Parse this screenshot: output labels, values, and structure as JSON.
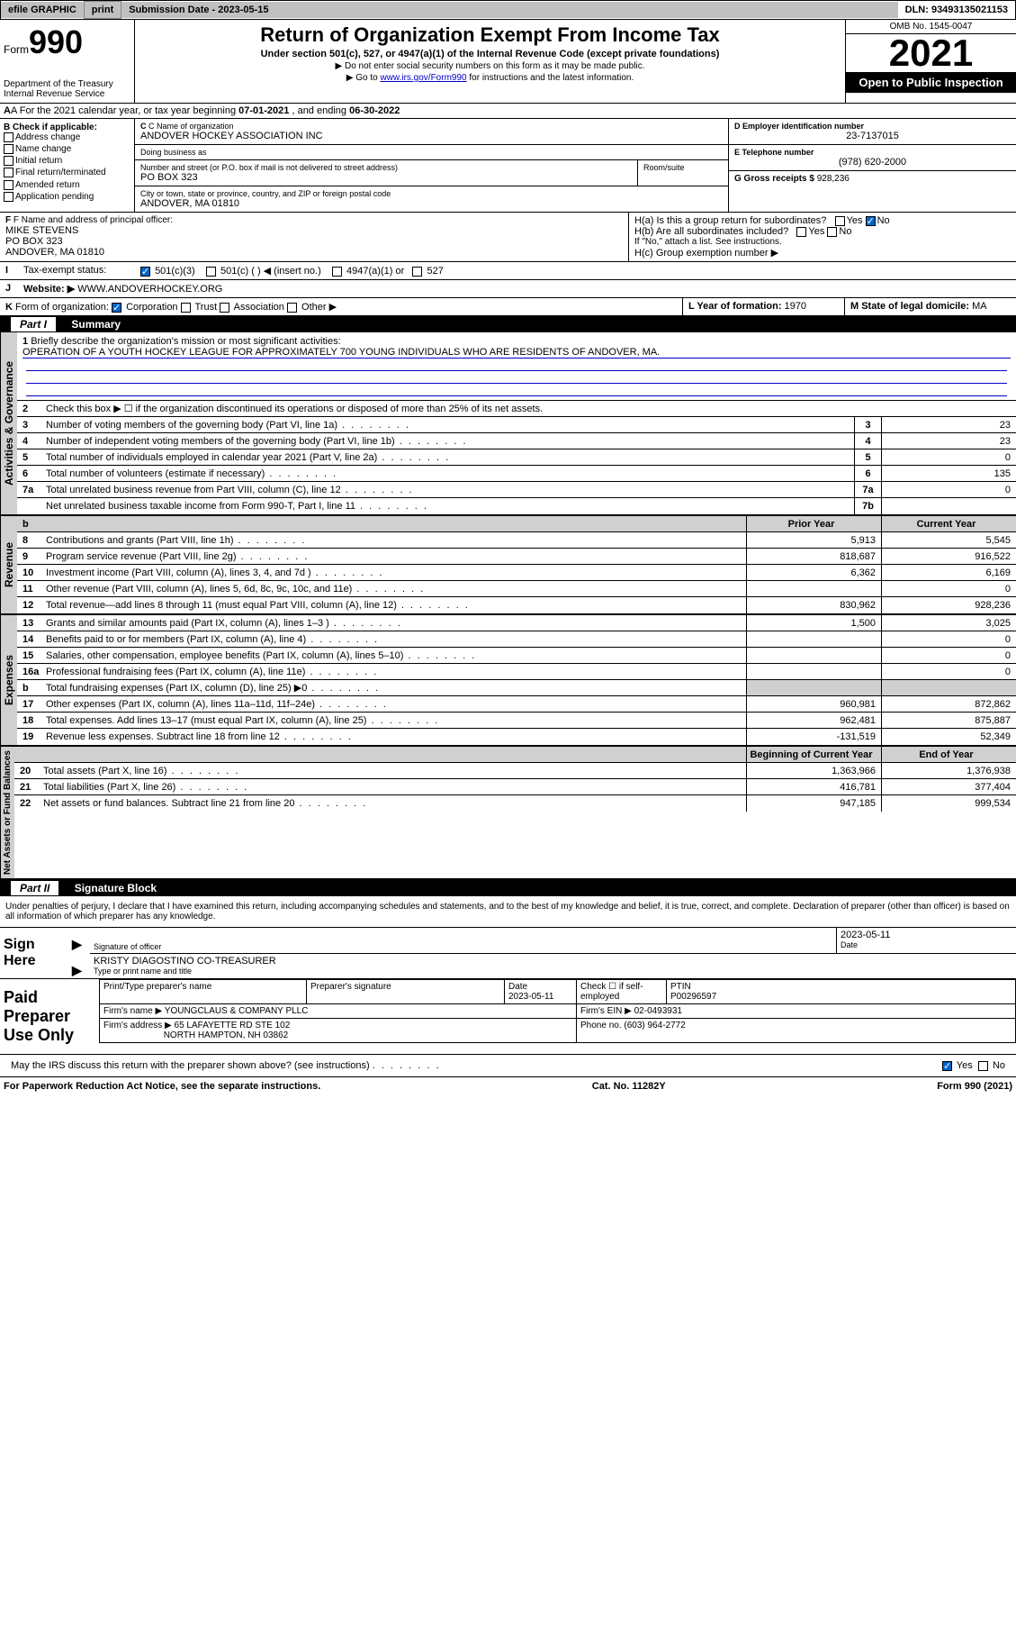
{
  "topbar": {
    "efile": "efile GRAPHIC",
    "print": "print",
    "sub_date_label": "Submission Date - 2023-05-15",
    "dln": "DLN: 93493135021153"
  },
  "header": {
    "form_prefix": "Form",
    "form_number": "990",
    "dept": "Department of the Treasury",
    "irs": "Internal Revenue Service",
    "title": "Return of Organization Exempt From Income Tax",
    "subtitle": "Under section 501(c), 527, or 4947(a)(1) of the Internal Revenue Code (except private foundations)",
    "note1": "▶ Do not enter social security numbers on this form as it may be made public.",
    "note2_pre": "▶ Go to ",
    "note2_link": "www.irs.gov/Form990",
    "note2_post": " for instructions and the latest information.",
    "omb": "OMB No. 1545-0047",
    "year": "2021",
    "open": "Open to Public Inspection"
  },
  "row_a": {
    "text_pre": "A For the 2021 calendar year, or tax year beginning ",
    "begin": "07-01-2021",
    "text_mid": " , and ending ",
    "end": "06-30-2022"
  },
  "col_b": {
    "label": "B Check if applicable:",
    "opts": [
      "Address change",
      "Name change",
      "Initial return",
      "Final return/terminated",
      "Amended return",
      "Application pending"
    ]
  },
  "block_c": {
    "label": "C Name of organization",
    "name": "ANDOVER HOCKEY ASSOCIATION INC",
    "dba_label": "Doing business as",
    "dba": "",
    "street_label": "Number and street (or P.O. box if mail is not delivered to street address)",
    "street": "PO BOX 323",
    "room_label": "Room/suite",
    "room": "",
    "city_label": "City or town, state or province, country, and ZIP or foreign postal code",
    "city": "ANDOVER, MA  01810"
  },
  "block_d": {
    "label": "D Employer identification number",
    "value": "23-7137015"
  },
  "block_e": {
    "label": "E Telephone number",
    "value": "(978) 620-2000"
  },
  "block_g": {
    "label": "G Gross receipts $",
    "value": "928,236"
  },
  "block_f": {
    "label": "F Name and address of principal officer:",
    "name": "MIKE STEVENS",
    "street": "PO BOX 323",
    "city": "ANDOVER, MA  01810"
  },
  "block_h": {
    "a": "H(a)  Is this a group return for subordinates?",
    "b": "H(b)  Are all subordinates included?",
    "b_note": "If \"No,\" attach a list. See instructions.",
    "c": "H(c)  Group exemption number ▶",
    "yes": "Yes",
    "no": "No"
  },
  "row_i": {
    "label": "I",
    "text": "Tax-exempt status:",
    "opts": [
      "501(c)(3)",
      "501(c) (  ) ◀ (insert no.)",
      "4947(a)(1) or",
      "527"
    ]
  },
  "row_j": {
    "label": "J",
    "text": "Website: ▶",
    "value": "WWW.ANDOVERHOCKEY.ORG"
  },
  "row_k": {
    "label": "K",
    "text": "Form of organization:",
    "opts": [
      "Corporation",
      "Trust",
      "Association",
      "Other ▶"
    ]
  },
  "row_l": {
    "label": "L Year of formation:",
    "value": "1970"
  },
  "row_m": {
    "label": "M State of legal domicile:",
    "value": "MA"
  },
  "part1": {
    "label": "Part I",
    "title": "Summary"
  },
  "summary": {
    "q1_label": "1",
    "q1_text": "Briefly describe the organization's mission or most significant activities:",
    "q1_value": "OPERATION OF A YOUTH HOCKEY LEAGUE FOR APPROXIMATELY 700 YOUNG INDIVIDUALS WHO ARE RESIDENTS OF ANDOVER, MA.",
    "q2_label": "2",
    "q2_text": "Check this box ▶ ☐ if the organization discontinued its operations or disposed of more than 25% of its net assets.",
    "lines_gov": [
      {
        "n": "3",
        "t": "Number of voting members of the governing body (Part VI, line 1a)",
        "box": "3",
        "v": "23"
      },
      {
        "n": "4",
        "t": "Number of independent voting members of the governing body (Part VI, line 1b)",
        "box": "4",
        "v": "23"
      },
      {
        "n": "5",
        "t": "Total number of individuals employed in calendar year 2021 (Part V, line 2a)",
        "box": "5",
        "v": "0"
      },
      {
        "n": "6",
        "t": "Total number of volunteers (estimate if necessary)",
        "box": "6",
        "v": "135"
      },
      {
        "n": "7a",
        "t": "Total unrelated business revenue from Part VIII, column (C), line 12",
        "box": "7a",
        "v": "0"
      },
      {
        "n": "",
        "t": "Net unrelated business taxable income from Form 990-T, Part I, line 11",
        "box": "7b",
        "v": ""
      }
    ],
    "col_headers": {
      "b": "b",
      "prior": "Prior Year",
      "current": "Current Year"
    },
    "lines_rev": [
      {
        "n": "8",
        "t": "Contributions and grants (Part VIII, line 1h)",
        "p": "5,913",
        "c": "5,545"
      },
      {
        "n": "9",
        "t": "Program service revenue (Part VIII, line 2g)",
        "p": "818,687",
        "c": "916,522"
      },
      {
        "n": "10",
        "t": "Investment income (Part VIII, column (A), lines 3, 4, and 7d )",
        "p": "6,362",
        "c": "6,169"
      },
      {
        "n": "11",
        "t": "Other revenue (Part VIII, column (A), lines 5, 6d, 8c, 9c, 10c, and 11e)",
        "p": "",
        "c": "0"
      },
      {
        "n": "12",
        "t": "Total revenue—add lines 8 through 11 (must equal Part VIII, column (A), line 12)",
        "p": "830,962",
        "c": "928,236"
      }
    ],
    "lines_exp": [
      {
        "n": "13",
        "t": "Grants and similar amounts paid (Part IX, column (A), lines 1–3 )",
        "p": "1,500",
        "c": "3,025"
      },
      {
        "n": "14",
        "t": "Benefits paid to or for members (Part IX, column (A), line 4)",
        "p": "",
        "c": "0"
      },
      {
        "n": "15",
        "t": "Salaries, other compensation, employee benefits (Part IX, column (A), lines 5–10)",
        "p": "",
        "c": "0"
      },
      {
        "n": "16a",
        "t": "Professional fundraising fees (Part IX, column (A), line 11e)",
        "p": "",
        "c": "0"
      },
      {
        "n": "b",
        "t": "Total fundraising expenses (Part IX, column (D), line 25) ▶0",
        "p": "SHADE",
        "c": "SHADE"
      },
      {
        "n": "17",
        "t": "Other expenses (Part IX, column (A), lines 11a–11d, 11f–24e)",
        "p": "960,981",
        "c": "872,862"
      },
      {
        "n": "18",
        "t": "Total expenses. Add lines 13–17 (must equal Part IX, column (A), line 25)",
        "p": "962,481",
        "c": "875,887"
      },
      {
        "n": "19",
        "t": "Revenue less expenses. Subtract line 18 from line 12",
        "p": "-131,519",
        "c": "52,349"
      }
    ],
    "net_headers": {
      "begin": "Beginning of Current Year",
      "end": "End of Year"
    },
    "lines_net": [
      {
        "n": "20",
        "t": "Total assets (Part X, line 16)",
        "p": "1,363,966",
        "c": "1,376,938"
      },
      {
        "n": "21",
        "t": "Total liabilities (Part X, line 26)",
        "p": "416,781",
        "c": "377,404"
      },
      {
        "n": "22",
        "t": "Net assets or fund balances. Subtract line 21 from line 20",
        "p": "947,185",
        "c": "999,534"
      }
    ],
    "vert_gov": "Activities & Governance",
    "vert_rev": "Revenue",
    "vert_exp": "Expenses",
    "vert_net": "Net Assets or Fund Balances"
  },
  "part2": {
    "label": "Part II",
    "title": "Signature Block"
  },
  "sig": {
    "declaration": "Under penalties of perjury, I declare that I have examined this return, including accompanying schedules and statements, and to the best of my knowledge and belief, it is true, correct, and complete. Declaration of preparer (other than officer) is based on all information of which preparer has any knowledge.",
    "sign_here": "Sign Here",
    "sig_officer": "Signature of officer",
    "date": "Date",
    "date_val": "2023-05-11",
    "name_title": "KRISTY DIAGOSTINO  CO-TREASURER",
    "type_name": "Type or print name and title",
    "paid": "Paid Preparer Use Only",
    "prep_name_label": "Print/Type preparer's name",
    "prep_sig_label": "Preparer's signature",
    "prep_date_label": "Date",
    "prep_date": "2023-05-11",
    "check_if": "Check ☐ if self-employed",
    "ptin_label": "PTIN",
    "ptin": "P00296597",
    "firm_name_label": "Firm's name    ▶",
    "firm_name": "YOUNGCLAUS & COMPANY PLLC",
    "firm_ein_label": "Firm's EIN ▶",
    "firm_ein": "02-0493931",
    "firm_addr_label": "Firm's address ▶",
    "firm_addr1": "65 LAFAYETTE RD STE 102",
    "firm_addr2": "NORTH HAMPTON, NH  03862",
    "phone_label": "Phone no.",
    "phone": "(603) 964-2772",
    "discuss": "May the IRS discuss this return with the preparer shown above? (see instructions)",
    "yes": "Yes",
    "no": "No"
  },
  "footer": {
    "left": "For Paperwork Reduction Act Notice, see the separate instructions.",
    "mid": "Cat. No. 11282Y",
    "right": "Form 990 (2021)"
  }
}
